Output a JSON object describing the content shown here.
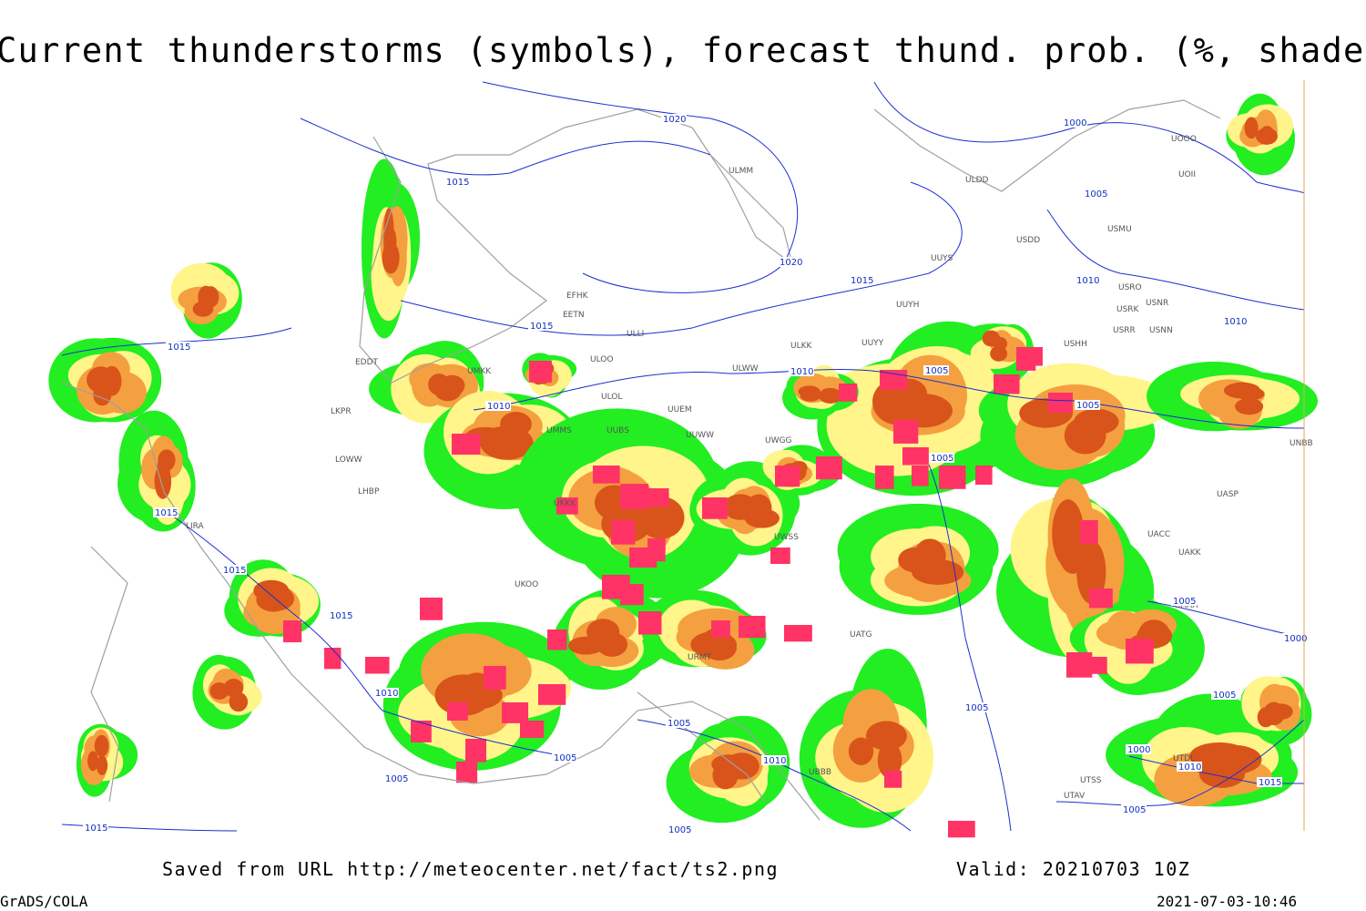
{
  "header": {
    "title": "Current thunderstorms (symbols), forecast thund. prob. (%, shaded)"
  },
  "footer": {
    "saved": "Saved from URL http://meteocenter.net/fact/ts2.png",
    "valid": "Valid: 20210703 10Z",
    "credit": "GrADS/COLA",
    "timestamp": "2021-07-03-10:46"
  },
  "stations": [
    "ULMM",
    "ULDD",
    "USDD",
    "USMU",
    "UUYS",
    "USRO",
    "USRK",
    "USNR",
    "USRR",
    "USNN",
    "UUYH",
    "EFHK",
    "EETN",
    "ULLI",
    "ULOO",
    "ULWW",
    "ULKK",
    "UUYY",
    "USHH",
    "UMKK",
    "EDDT",
    "ULOL",
    "UUEM",
    "UMMS",
    "UUBS",
    "UUWW",
    "UWGG",
    "LKPR",
    "LOWW",
    "LHBP",
    "UKKK",
    "UWSS",
    "LIRA",
    "UKOO",
    "UATG",
    "URMT",
    "UBBB",
    "UTSS",
    "UTAV",
    "UTDL",
    "UAAA",
    "UACC",
    "UAKK",
    "UASP",
    "UNBB",
    "UOII",
    "UOOO"
  ],
  "isobars": [
    "1020",
    "1015",
    "1000",
    "1005",
    "1020",
    "1015",
    "1015",
    "1010",
    "1010",
    "1015",
    "1010",
    "1010",
    "1005",
    "1005",
    "1005",
    "1015",
    "1015",
    "1015",
    "1010",
    "1005",
    "1005",
    "1000",
    "1010",
    "1015",
    "1005",
    "1005",
    "1010",
    "1005",
    "1005",
    "1015",
    "1005",
    "1005",
    "1000"
  ]
}
